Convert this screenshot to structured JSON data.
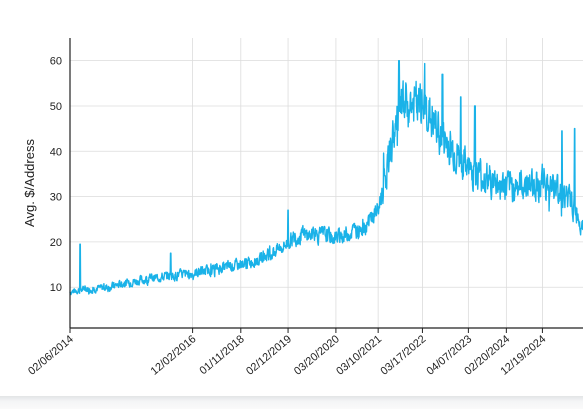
{
  "chart_data": {
    "type": "line",
    "title": "",
    "xlabel": "",
    "ylabel": "Avg. $/Address",
    "x_range": [
      "02/06/2014",
      "11/25/2025"
    ],
    "ylim": [
      1,
      65
    ],
    "grid": true,
    "legend": "none",
    "line_color": "#1ab2e8",
    "xticks": [
      "02/06/2014",
      "12/02/2016",
      "01/11/2018",
      "02/12/2019",
      "03/20/2020",
      "03/10/2021",
      "03/17/2022",
      "04/07/2023",
      "02/20/2024",
      "12/19/2024"
    ],
    "yticks": [
      10,
      20,
      30,
      40,
      50,
      60
    ],
    "series": [
      {
        "points": [
          [
            "02/06/2014",
            9
          ],
          [
            "06/01/2014",
            9.5
          ],
          [
            "01/01/2015",
            10
          ],
          [
            "06/01/2015",
            11
          ],
          [
            "01/01/2016",
            12
          ],
          [
            "06/01/2016",
            12.5
          ],
          [
            "12/02/2016",
            13
          ],
          [
            "06/01/2017",
            14
          ],
          [
            "01/11/2018",
            15
          ],
          [
            "06/01/2018",
            16
          ],
          [
            "01/01/2019",
            19
          ],
          [
            "02/12/2019",
            20
          ],
          [
            "06/01/2019",
            21.5
          ],
          [
            "01/01/2020",
            21.5
          ],
          [
            "03/20/2020",
            21
          ],
          [
            "09/01/2020",
            22.5
          ],
          [
            "12/01/2020",
            24
          ],
          [
            "03/10/2021",
            27
          ],
          [
            "05/01/2021",
            33
          ],
          [
            "07/01/2021",
            42
          ],
          [
            "09/01/2021",
            48
          ],
          [
            "12/01/2021",
            50
          ],
          [
            "03/17/2022",
            50
          ],
          [
            "06/01/2022",
            47
          ],
          [
            "09/01/2022",
            43
          ],
          [
            "01/01/2023",
            39
          ],
          [
            "04/07/2023",
            36
          ],
          [
            "09/01/2023",
            34
          ],
          [
            "02/20/2024",
            32
          ],
          [
            "06/01/2024",
            32.5
          ],
          [
            "12/19/2024",
            33
          ],
          [
            "06/01/2025",
            31
          ],
          [
            "09/01/2025",
            28
          ],
          [
            "11/25/2025",
            24
          ]
        ],
        "spikes": [
          [
            "05/01/2014",
            19.5
          ],
          [
            "06/01/2016",
            17.5
          ],
          [
            "02/12/2019",
            27
          ],
          [
            "09/01/2021",
            60
          ],
          [
            "09/01/2022",
            57
          ],
          [
            "02/01/2023",
            52
          ],
          [
            "06/01/2023",
            50
          ],
          [
            "06/01/2025",
            44.5
          ],
          [
            "09/15/2025",
            45
          ]
        ]
      }
    ]
  }
}
